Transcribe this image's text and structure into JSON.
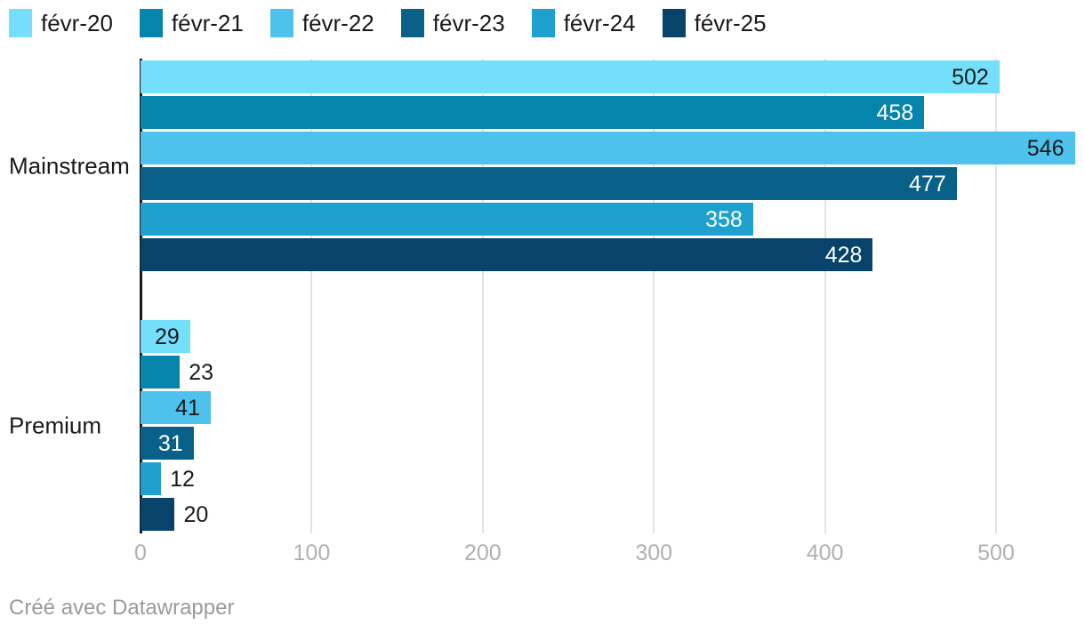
{
  "chart_data": {
    "type": "bar",
    "orientation": "horizontal",
    "categories": [
      "Mainstream",
      "Premium"
    ],
    "series": [
      {
        "name": "févr-20",
        "color": "#74DFFB",
        "values": [
          502,
          29
        ]
      },
      {
        "name": "févr-21",
        "color": "#0584AC",
        "values": [
          458,
          23
        ]
      },
      {
        "name": "févr-22",
        "color": "#4EC1ED",
        "values": [
          546,
          41
        ]
      },
      {
        "name": "févr-23",
        "color": "#09618A",
        "values": [
          477,
          31
        ]
      },
      {
        "name": "févr-24",
        "color": "#1EA1CE",
        "values": [
          358,
          12
        ]
      },
      {
        "name": "févr-25",
        "color": "#07436A",
        "values": [
          428,
          20
        ]
      }
    ],
    "x_axis": {
      "ticks": [
        0,
        100,
        200,
        300,
        400,
        500
      ],
      "min": 0,
      "max": 500
    },
    "grid": true,
    "legend_position": "top",
    "value_labels": true
  },
  "colors": {
    "label_dark": "#1a1a1a",
    "label_light": "#ffffff",
    "tick_text": "#b0b0b0",
    "gridline": "#e3e3e3",
    "axis_line": "#1a1a1a",
    "footer_text": "#9a9a9a"
  },
  "footer": {
    "credit": "Créé avec Datawrapper"
  }
}
